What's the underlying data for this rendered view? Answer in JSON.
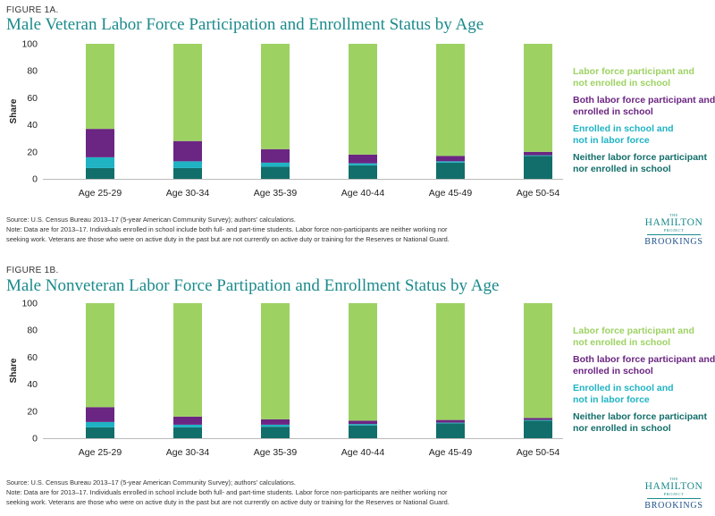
{
  "chart_data": [
    {
      "type": "bar",
      "stacked": true,
      "figure_label": "FIGURE 1A.",
      "title": "Male Veteran Labor Force Participation and Enrollment Status by Age",
      "ylabel": "Share",
      "ylim": [
        0,
        100
      ],
      "yticks": [
        0,
        20,
        40,
        60,
        80,
        100
      ],
      "grid": false,
      "legend_position": "right",
      "categories": [
        "Age 25-29",
        "Age 30-34",
        "Age 35-39",
        "Age 40-44",
        "Age 45-49",
        "Age 50-54"
      ],
      "series": [
        {
          "name": "Neither labor force participant nor enrolled in school",
          "legend_lines": [
            "Neither labor force participant",
            "nor enrolled in school"
          ],
          "color": "#126e6a",
          "values": [
            8,
            8,
            9,
            10,
            12,
            17
          ]
        },
        {
          "name": "Enrolled in school and not in labor force",
          "legend_lines": [
            "Enrolled in school and",
            "not in labor force"
          ],
          "color": "#1fb3c4",
          "values": [
            8,
            5,
            3,
            1.5,
            1,
            0.5
          ]
        },
        {
          "name": "Both labor force participant and enrolled in school",
          "legend_lines": [
            "Both labor force participant and",
            "enrolled in school"
          ],
          "color": "#6b2582",
          "values": [
            21,
            15,
            10,
            6.5,
            4,
            2.5
          ]
        },
        {
          "name": "Labor force participant and not enrolled in school",
          "legend_lines": [
            "Labor force participant and",
            "not enrolled in school"
          ],
          "color": "#9dd263",
          "values": [
            63,
            72,
            78,
            82,
            83,
            80
          ]
        }
      ],
      "source": "Source: U.S. Census Bureau 2013–17 (5-year American Community Survey); authors' calculations.",
      "note_lines": [
        "Note: Data are for 2013–17. Individuals enrolled in school include both full- and part-time students. Labor force non-participants are neither working nor",
        "seeking work. Veterans are those who were on active duty in the past but are not currently on active duty or training for the Reserves or National Guard."
      ]
    },
    {
      "type": "bar",
      "stacked": true,
      "figure_label": "FIGURE 1B.",
      "title": "Male Nonveteran Labor Force Partipation and Enrollment Status by Age",
      "ylabel": "Share",
      "ylim": [
        0,
        100
      ],
      "yticks": [
        0,
        20,
        40,
        60,
        80,
        100
      ],
      "grid": false,
      "legend_position": "right",
      "categories": [
        "Age 25-29",
        "Age 30-34",
        "Age 35-39",
        "Age 40-44",
        "Age 45-49",
        "Age 50-54"
      ],
      "series": [
        {
          "name": "Neither labor force participant nor enrolled in school",
          "legend_lines": [
            "Neither labor force participant",
            "nor enrolled in school"
          ],
          "color": "#126e6a",
          "values": [
            8,
            8,
            8.5,
            9.5,
            11,
            13
          ]
        },
        {
          "name": "Enrolled in school and not in labor force",
          "legend_lines": [
            "Enrolled in school and",
            "not in labor force"
          ],
          "color": "#1fb3c4",
          "values": [
            4,
            2,
            1.5,
            1,
            0.5,
            0.5
          ]
        },
        {
          "name": "Both labor force participant and enrolled in school",
          "legend_lines": [
            "Both labor force participant and",
            "enrolled in school"
          ],
          "color": "#6b2582",
          "values": [
            11,
            6,
            4,
            2.5,
            2,
            1.5
          ]
        },
        {
          "name": "Labor force participant and not enrolled in school",
          "legend_lines": [
            "Labor force participant and",
            "not enrolled in school"
          ],
          "color": "#9dd263",
          "values": [
            77,
            84,
            86,
            87,
            86.5,
            85
          ]
        }
      ],
      "source": "Source: U.S. Census Bureau 2013–17 (5-year American Community Survey); authors' calculations.",
      "note_lines": [
        "Note: Data are for 2013–17. Individuals enrolled in school include both full- and part-time students. Labor force non-participants are neither working nor",
        "seeking work. Veterans are those who were on active duty in the past but are not currently on active duty or training for the Reserves or National Guard."
      ]
    }
  ],
  "logo": {
    "the": "THE",
    "main": "HAMILTON",
    "project": "PROJECT",
    "brookings": "BROOKINGS"
  }
}
